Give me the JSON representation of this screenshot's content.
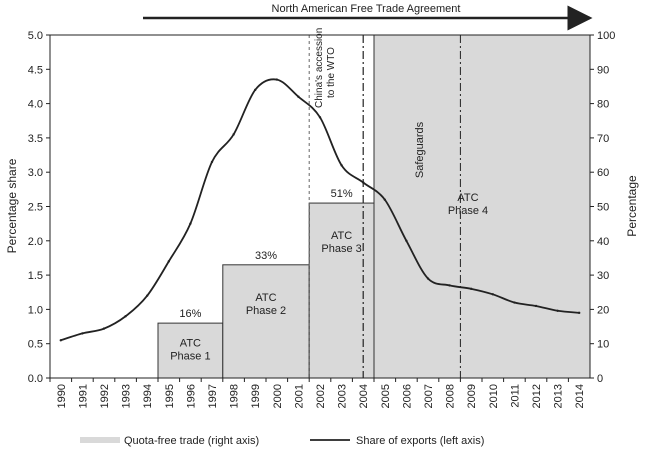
{
  "chart_data": {
    "type": "line",
    "x_categories": [
      "1990",
      "1991",
      "1992",
      "1993",
      "1994",
      "1995",
      "1996",
      "1997",
      "1998",
      "1999",
      "2000",
      "2001",
      "2002",
      "2003",
      "2004",
      "2005",
      "2006",
      "2007",
      "2008",
      "2009",
      "2010",
      "2011",
      "2012",
      "2013",
      "2014"
    ],
    "left_axis": {
      "label": "Percentage share",
      "ylim": [
        0,
        5.0
      ],
      "ticks": [
        "0.0",
        "0.5",
        "1.0",
        "1.5",
        "2.0",
        "2.5",
        "3.0",
        "3.5",
        "4.0",
        "4.5",
        "5.0"
      ]
    },
    "right_axis": {
      "label": "Percentage",
      "ylim": [
        0,
        100
      ],
      "ticks": [
        "0",
        "10",
        "20",
        "30",
        "40",
        "50",
        "60",
        "70",
        "80",
        "90",
        "100"
      ]
    },
    "series": [
      {
        "name": "Share of exports (left axis)",
        "axis": "left",
        "x": [
          1990,
          1991,
          1992,
          1993,
          1994,
          1995,
          1996,
          1997,
          1998,
          1999,
          2000,
          2001,
          2002,
          2003,
          2004,
          2005,
          2006,
          2007,
          2008,
          2009,
          2010,
          2011,
          2012,
          2013,
          2014
        ],
        "values": [
          0.55,
          0.65,
          0.72,
          0.9,
          1.2,
          1.7,
          2.25,
          3.15,
          3.55,
          4.2,
          4.35,
          4.1,
          3.8,
          3.1,
          2.85,
          2.6,
          2.0,
          1.45,
          1.35,
          1.3,
          1.22,
          1.1,
          1.05,
          0.98,
          0.95
        ]
      }
    ],
    "quota_free": {
      "name": "Quota-free trade (right axis)",
      "axis": "right",
      "phases": [
        {
          "label_line1": "ATC",
          "label_line2": "Phase 1",
          "pct_label": "16%",
          "x0": 1995,
          "x1": 1998,
          "value": 16
        },
        {
          "label_line1": "ATC",
          "label_line2": "Phase 2",
          "pct_label": "33%",
          "x0": 1998,
          "x1": 2002,
          "value": 33
        },
        {
          "label_line1": "ATC",
          "label_line2": "Phase 3",
          "pct_label": "51%",
          "x0": 2002,
          "x1": 2005,
          "value": 51
        },
        {
          "label_line1": "ATC",
          "label_line2": "Phase 4",
          "pct_label": "",
          "x0": 2005,
          "x1": 2015,
          "value": 100
        }
      ]
    },
    "annotations": {
      "nafta": "North American Free Trade Agreement",
      "china_wto_line1": "China's accession",
      "china_wto_line2": "to the WTO",
      "safeguards": "Safeguards"
    },
    "legend": [
      {
        "label": "Quota-free trade (right axis)",
        "swatch": "band"
      },
      {
        "label": "Share of exports (left axis)",
        "swatch": "line"
      }
    ],
    "legend_position": "bottom",
    "colors": {
      "line": "#222222",
      "band": "#d9d9d9",
      "band_edge": "#333333",
      "axis": "#222222"
    }
  }
}
